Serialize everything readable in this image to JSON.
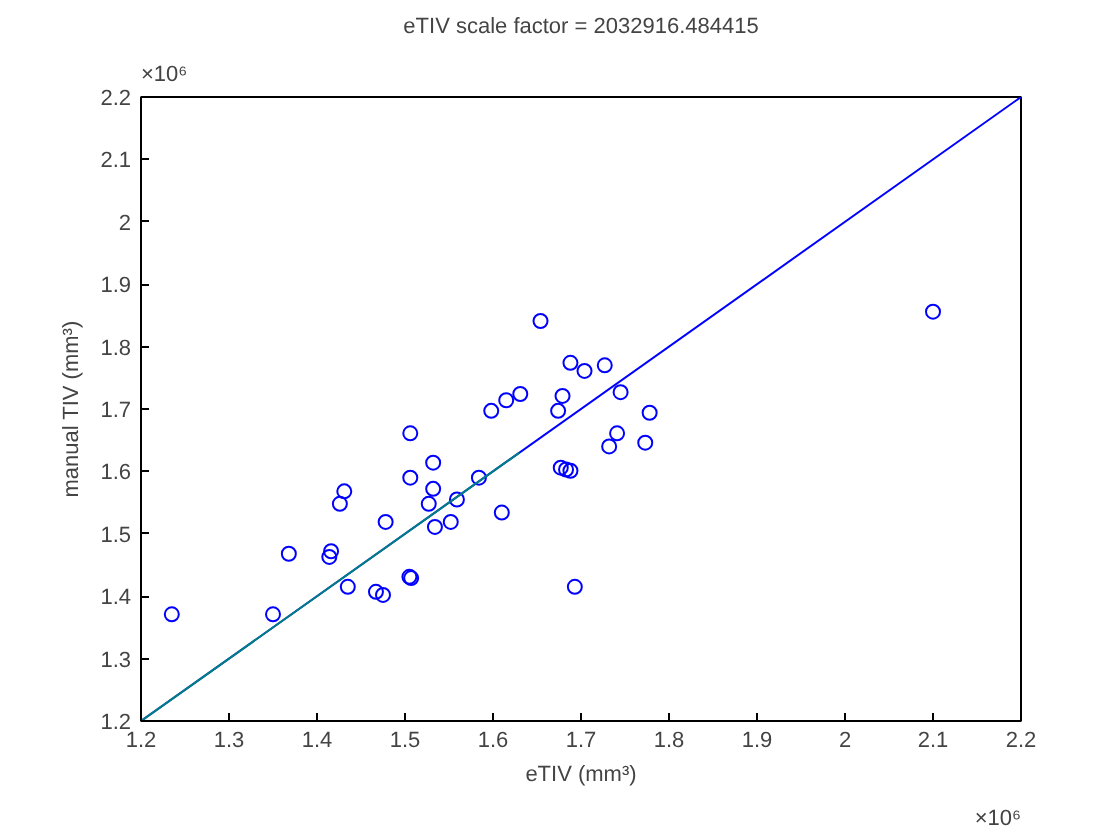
{
  "chart_data": {
    "type": "scatter",
    "title": "eTIV scale factor = 2032916.484415",
    "xlabel": "eTIV (mm³)",
    "ylabel": "manual TIV (mm³)",
    "annotations": [
      "×10⁶",
      "×10⁶"
    ],
    "xlim": [
      1.2,
      2.2
    ],
    "ylim": [
      1.2,
      2.2
    ],
    "xticks": [
      1.2,
      1.3,
      1.4,
      1.5,
      1.6,
      1.7,
      1.8,
      1.9,
      2,
      2.1,
      2.2
    ],
    "yticks": [
      1.2,
      1.3,
      1.4,
      1.5,
      1.6,
      1.7,
      1.8,
      1.9,
      2,
      2.1,
      2.2
    ],
    "grid": false,
    "series": [
      {
        "marker": "circle",
        "color": "#0000ff",
        "x": [
          1.654,
          1.688,
          1.704,
          1.727,
          1.598,
          1.615,
          1.631,
          1.679,
          1.674,
          1.745,
          1.778,
          1.741,
          1.732,
          1.773,
          1.677,
          1.683,
          1.688,
          1.506,
          1.532,
          1.506,
          1.532,
          1.584,
          1.527,
          1.559,
          1.61,
          1.534,
          1.552,
          1.505,
          1.507,
          1.693,
          1.235,
          1.35,
          1.368,
          1.416,
          1.414,
          1.435,
          1.467,
          1.475,
          1.431,
          1.426,
          1.478,
          2.1
        ],
        "values": [
          1.841,
          1.774,
          1.761,
          1.77,
          1.697,
          1.714,
          1.724,
          1.721,
          1.697,
          1.727,
          1.694,
          1.661,
          1.64,
          1.646,
          1.606,
          1.603,
          1.601,
          1.661,
          1.614,
          1.59,
          1.572,
          1.59,
          1.548,
          1.555,
          1.534,
          1.511,
          1.519,
          1.431,
          1.429,
          1.415,
          1.371,
          1.371,
          1.468,
          1.472,
          1.463,
          1.415,
          1.407,
          1.402,
          1.568,
          1.548,
          1.519,
          1.856
        ]
      },
      {
        "type": "line",
        "color": "#0000ff",
        "x": [
          1.2,
          2.2
        ],
        "values": [
          1.2,
          2.2
        ]
      },
      {
        "type": "line",
        "color": "#008080",
        "x": [
          1.2,
          1.63
        ],
        "values": [
          1.2,
          1.63
        ]
      }
    ]
  }
}
